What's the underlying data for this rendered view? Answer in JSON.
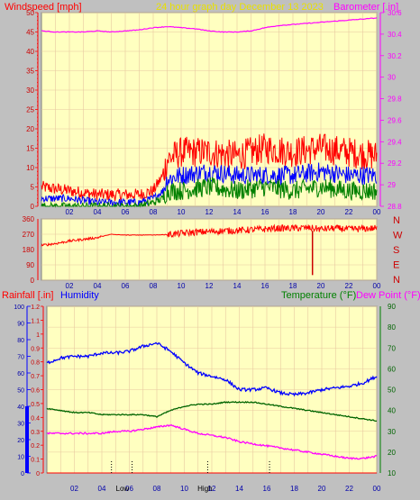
{
  "header": {
    "windspeed_label": "Windspeed [mph]",
    "date_label": "24 hour graph day   December 13 2023",
    "barometer_label": "Barometer [.in]"
  },
  "colors": {
    "bg": "#c0c0c0",
    "plot_bg": "#ffffc0",
    "grid": "#e8c8a0",
    "red": "#ff0000",
    "blue": "#0000ff",
    "green": "#008000",
    "magenta": "#ff00ff",
    "dark_red": "#cc0000",
    "dark_blue": "#0000aa",
    "dark_green": "#006400"
  },
  "chart_data": [
    {
      "type": "line",
      "name": "wind-barometer",
      "x_ticks": [
        "02",
        "04",
        "06",
        "08",
        "10",
        "12",
        "14",
        "16",
        "18",
        "20",
        "22",
        "00"
      ],
      "xlim": [
        0,
        24
      ],
      "ylim_left": [
        0,
        50
      ],
      "y_ticks_left": [
        "0",
        "5",
        "10",
        "15",
        "20",
        "25",
        "30",
        "35",
        "40",
        "45",
        "50"
      ],
      "ylim_right": [
        28.8,
        30.6
      ],
      "y_ticks_right": [
        "28.8",
        "29",
        "29.2",
        "29.4",
        "29.6",
        "29.8",
        "30",
        "30.2",
        "30.4",
        "30.6"
      ],
      "barometer": {
        "x": [
          0,
          1,
          2,
          3,
          4,
          5,
          6,
          7,
          8,
          9,
          10,
          11,
          12,
          13,
          14,
          15,
          16,
          17,
          18,
          19,
          20,
          21,
          22,
          23,
          24
        ],
        "values": [
          30.43,
          30.42,
          30.42,
          30.42,
          30.43,
          30.42,
          30.43,
          30.44,
          30.46,
          30.47,
          30.46,
          30.45,
          30.43,
          30.42,
          30.42,
          30.43,
          30.46,
          30.48,
          30.49,
          30.5,
          30.51,
          30.52,
          30.53,
          30.54,
          30.55
        ]
      },
      "wind_gust_high": {
        "x": [
          0,
          2,
          4,
          6,
          7,
          8,
          8.7,
          9,
          10,
          12,
          14,
          16,
          18,
          20,
          22,
          24
        ],
        "values": [
          5,
          4,
          3,
          3,
          3,
          4,
          8,
          12,
          14,
          14,
          13,
          15,
          14,
          15,
          14,
          13
        ]
      },
      "wind_avg": {
        "x": [
          0,
          2,
          4,
          6,
          7,
          8,
          8.7,
          9,
          10,
          12,
          14,
          16,
          18,
          20,
          22,
          24
        ],
        "values": [
          2,
          2,
          1,
          1,
          1,
          2,
          4,
          7,
          8,
          9,
          8,
          8,
          8,
          9,
          8,
          8
        ]
      },
      "wind_low": {
        "x": [
          0,
          2,
          4,
          6,
          7,
          8,
          8.7,
          9,
          10,
          12,
          14,
          16,
          18,
          20,
          22,
          24
        ],
        "values": [
          0,
          0,
          0,
          0,
          0,
          1,
          2,
          4,
          4,
          5,
          4,
          5,
          4,
          5,
          4,
          4
        ]
      }
    },
    {
      "type": "line",
      "name": "wind-direction",
      "x_ticks": [
        "02",
        "04",
        "06",
        "08",
        "10",
        "12",
        "14",
        "16",
        "18",
        "20",
        "22",
        "00"
      ],
      "xlim": [
        0,
        24
      ],
      "ylim_left": [
        0,
        360
      ],
      "y_ticks_left": [
        "0",
        "90",
        "180",
        "270",
        "360"
      ],
      "right_labels": [
        "N",
        "W",
        "S",
        "E",
        "N"
      ],
      "direction": {
        "x": [
          0,
          1,
          2,
          3,
          4,
          5,
          6,
          7,
          8,
          9,
          10,
          11,
          12,
          13,
          14,
          15,
          16,
          17,
          18,
          19,
          20,
          21,
          22,
          23,
          24
        ],
        "values": [
          205,
          215,
          230,
          240,
          250,
          270,
          265,
          265,
          265,
          268,
          275,
          282,
          285,
          290,
          292,
          296,
          300,
          305,
          305,
          308,
          300,
          305,
          300,
          302,
          305
        ]
      },
      "spike_x": 19.4,
      "spike_low": 30
    },
    {
      "type": "line",
      "name": "rain-humidity-temperature",
      "labels": {
        "rainfall": "Rainfall [.in]",
        "humidity": "Humidity",
        "temperature": "Temperature (°F)",
        "dewpoint": "Dew Point (°F)"
      },
      "x_ticks": [
        "02",
        "04",
        "06",
        "08",
        "10",
        "12",
        "14",
        "16",
        "18",
        "20",
        "22",
        "00"
      ],
      "xlim": [
        0,
        24
      ],
      "humidity_ticks": [
        "0",
        "10",
        "20",
        "30",
        "40",
        "50",
        "60",
        "70",
        "80",
        "90",
        "100"
      ],
      "ylim_humidity": [
        0,
        100
      ],
      "rain_ticks": [
        "0",
        "0.1",
        "0.2",
        "0.3",
        "0.4",
        "0.5",
        "0.6",
        "0.7",
        "0.8",
        "0.9",
        "1",
        "1.1",
        "1.2"
      ],
      "ylim_rain": [
        0,
        1.2
      ],
      "temp_ticks": [
        "10",
        "20",
        "30",
        "40",
        "50",
        "60",
        "70",
        "80",
        "90"
      ],
      "ylim_temp": [
        10,
        90
      ],
      "humidity": {
        "x": [
          0,
          1,
          2,
          3,
          4,
          5,
          6,
          7,
          8,
          9,
          10,
          11,
          12,
          13,
          14,
          15,
          16,
          17,
          18,
          19,
          20,
          21,
          22,
          23,
          24
        ],
        "values": [
          66,
          69,
          70,
          70,
          72,
          72,
          73,
          76,
          78,
          73,
          66,
          60,
          58,
          56,
          50,
          50,
          51,
          48,
          47,
          48,
          50,
          51,
          52,
          54,
          58
        ]
      },
      "temperature": {
        "x": [
          0,
          1,
          2,
          3,
          4,
          5,
          6,
          7,
          8,
          9,
          10,
          11,
          12,
          13,
          14,
          15,
          16,
          17,
          18,
          19,
          20,
          21,
          22,
          23,
          24
        ],
        "values": [
          41,
          40,
          39,
          39,
          38,
          38,
          38,
          38,
          37,
          40,
          42,
          43,
          43,
          44,
          44,
          44,
          43,
          42,
          41,
          40,
          39,
          38,
          37,
          36,
          35
        ]
      },
      "dewpoint": {
        "x": [
          0,
          1,
          2,
          3,
          4,
          5,
          6,
          7,
          8,
          9,
          10,
          11,
          12,
          13,
          14,
          15,
          16,
          17,
          18,
          19,
          20,
          21,
          22,
          23,
          24
        ],
        "values": [
          29,
          29,
          29,
          29,
          29,
          30,
          30,
          31,
          32,
          33,
          31,
          29,
          28,
          27,
          25,
          24,
          23,
          22,
          21,
          20,
          19,
          18,
          17,
          17,
          18
        ]
      },
      "rainfall": {
        "x": [
          0,
          24
        ],
        "values": [
          0,
          0
        ]
      },
      "markers": {
        "low_label": "Low",
        "high_label": "High",
        "low_x": 5.5,
        "high_x": 11.5,
        "dotted_x": [
          4.7,
          6.2,
          11.7,
          16.2
        ]
      }
    }
  ]
}
